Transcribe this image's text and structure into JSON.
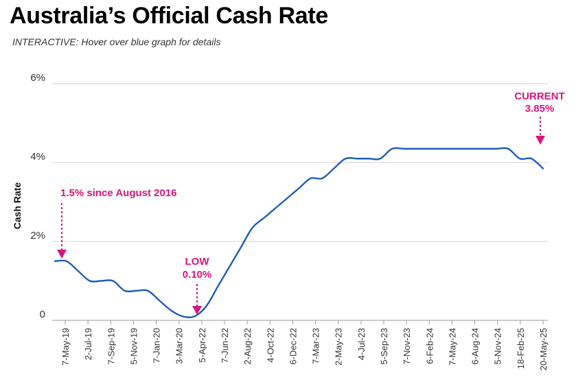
{
  "header": {
    "title": "Australia’s Official Cash Rate",
    "subtitle": "INTERACTIVE: Hover over blue graph for details"
  },
  "colors": {
    "line": "#1f5bb8",
    "annotation": "#d6157e",
    "grid": "#d0d0d0",
    "axis_text": "#333333"
  },
  "chart_data": {
    "type": "line",
    "title": "Australia’s Official Cash Rate",
    "ylabel": "Cash Rate",
    "xlabel": "",
    "ylim": [
      0,
      6
    ],
    "yticks": [
      {
        "value": 0,
        "label": "0"
      },
      {
        "value": 2,
        "label": "2%"
      },
      {
        "value": 4,
        "label": "4%"
      },
      {
        "value": 6,
        "label": "6%"
      }
    ],
    "x_tick_labels": [
      "7-May-19",
      "2-Jul-19",
      "7-Sep-19",
      "5-Nov-19",
      "7-Jan-20",
      "3-Mar-20",
      "5-Apr-22",
      "7-Jun-22",
      "2-Aug-22",
      "4-Oct-22",
      "6-Dec-22",
      "7-Mar-23",
      "2-May-23",
      "4-Jul-23",
      "5-Sep-23",
      "7-Nov-23",
      "6-Feb-24",
      "7-May-24",
      "6-Aug-24",
      "5-Nov-24",
      "18-Feb-25",
      "20-May-25"
    ],
    "grid": true,
    "series": [
      {
        "values": [
          1.5,
          1.5,
          1.25,
          1.0,
          1.0,
          1.0,
          0.75,
          0.75,
          0.75,
          0.5,
          0.25,
          0.1,
          0.1,
          0.35,
          0.85,
          1.35,
          1.85,
          2.35,
          2.6,
          2.85,
          3.1,
          3.35,
          3.6,
          3.6,
          3.85,
          4.1,
          4.1,
          4.1,
          4.1,
          4.35,
          4.35,
          4.35,
          4.35,
          4.35,
          4.35,
          4.35,
          4.35,
          4.35,
          4.35,
          4.35,
          4.1,
          4.1,
          3.85
        ]
      }
    ],
    "annotations": [
      {
        "text_lines": [
          "1.5% since August 2016"
        ],
        "target": "7-May-19",
        "value": 1.5
      },
      {
        "text_lines": [
          "LOW",
          "0.10%"
        ],
        "target": "5-Apr-22",
        "value": 0.1
      },
      {
        "text_lines": [
          "CURRENT",
          "3.85%"
        ],
        "target": "20-May-25",
        "value": 3.85
      }
    ]
  }
}
